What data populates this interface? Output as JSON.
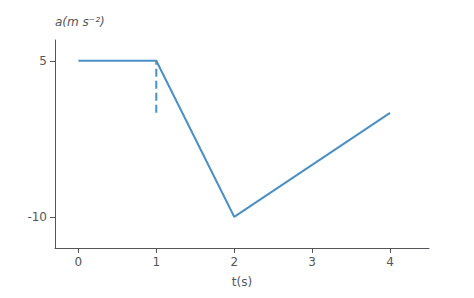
{
  "chart_data": {
    "type": "line",
    "xlabel": "t(s)",
    "ylabel": "a(m s⁻²)",
    "series": [
      {
        "x": [
          0,
          1,
          2,
          4
        ],
        "values": [
          5,
          5,
          -10,
          0
        ],
        "color": "#4a90c4",
        "line_style": "solid"
      },
      {
        "x": [
          1,
          1
        ],
        "values": [
          0,
          5
        ],
        "color": "#4a90c4",
        "line_style": "dashed"
      }
    ],
    "xlim": [
      -0.3,
      4.5
    ],
    "ylim": [
      -13,
      7
    ],
    "xticks": [
      0,
      1,
      2,
      3,
      4
    ],
    "yticks": [
      -10,
      5
    ],
    "grid": false
  }
}
